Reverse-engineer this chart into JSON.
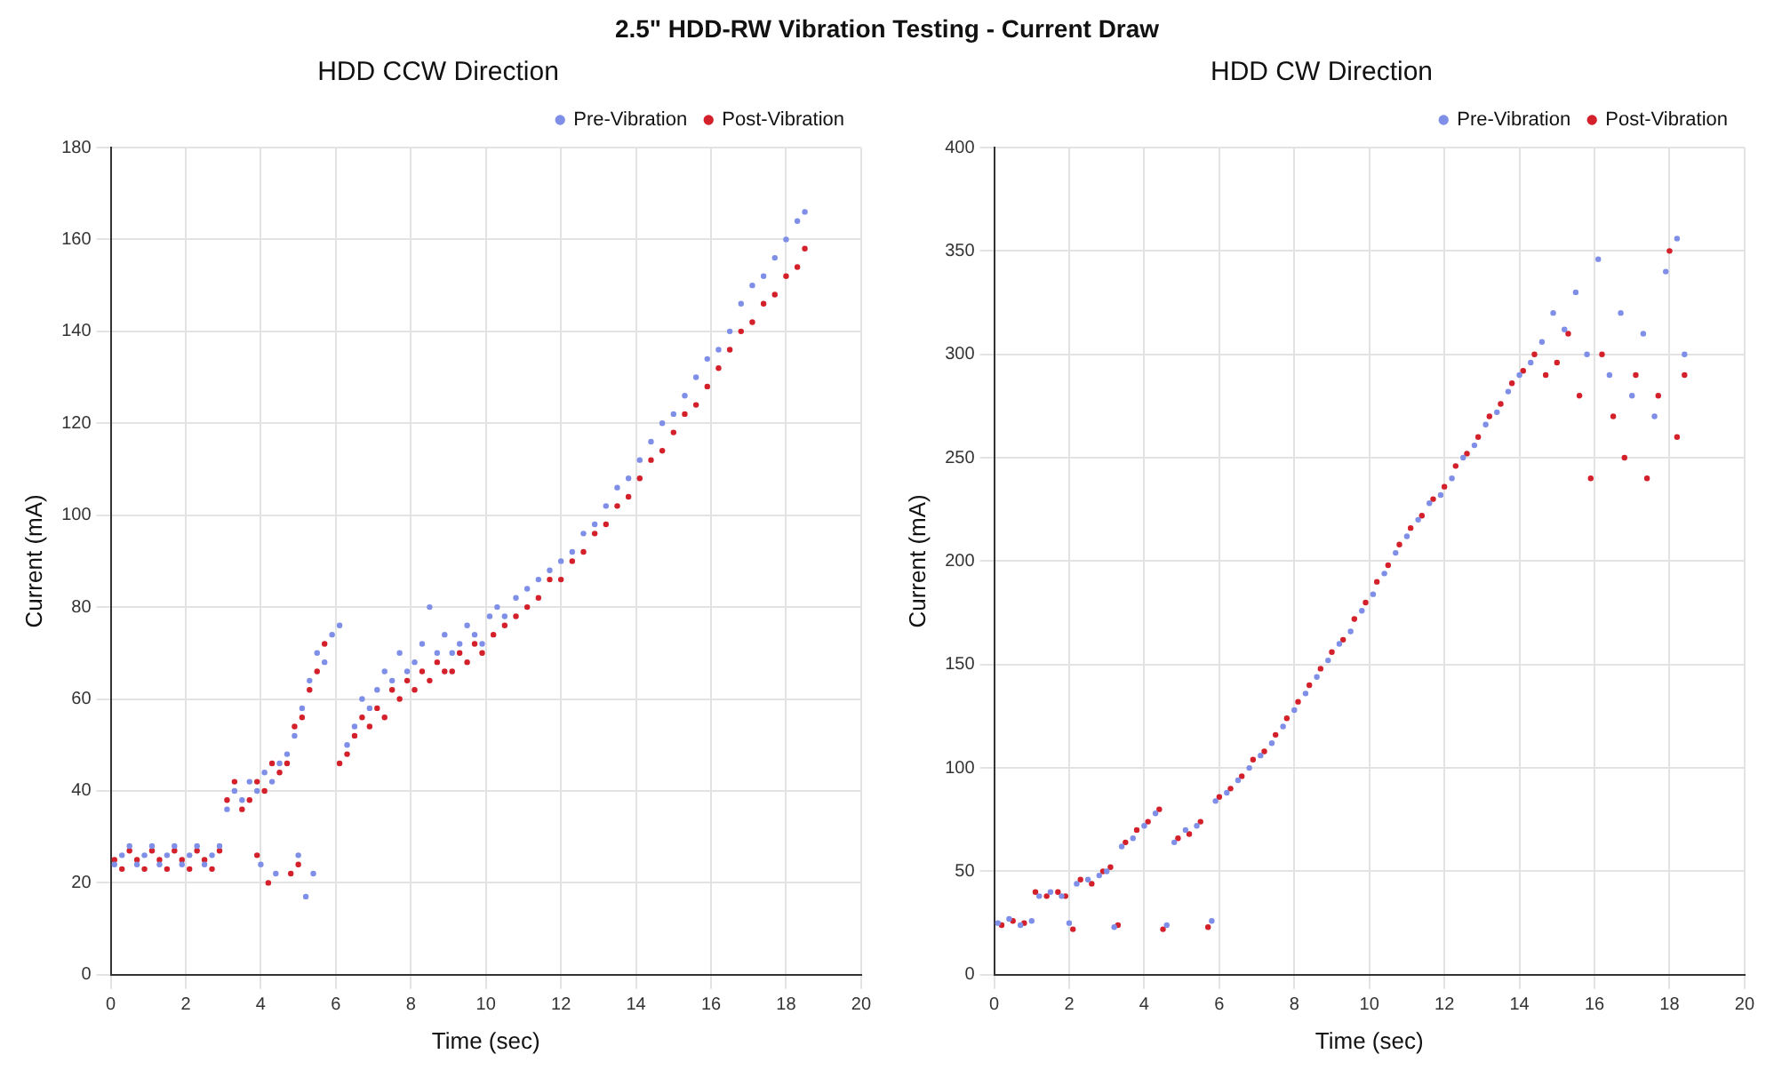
{
  "chart_data": [
    {
      "type": "scatter",
      "annotations": [
        "2.5\" HDD-RW Vibration Testing - Current Draw"
      ],
      "title": "HDD CCW Direction",
      "xlabel": "Time (sec)",
      "ylabel": "Current (mA)",
      "xlim": [
        0,
        20
      ],
      "ylim": [
        0,
        180
      ],
      "xticks": [
        0,
        2,
        4,
        6,
        8,
        10,
        12,
        14,
        16,
        18,
        20
      ],
      "yticks": [
        0,
        20,
        40,
        60,
        80,
        100,
        120,
        140,
        160,
        180
      ],
      "grid": true,
      "legend": "top right",
      "marker": "circle",
      "series": [
        {
          "name": "Pre-Vibration",
          "color": "#7f8fe8",
          "x": [
            0.1,
            0.3,
            0.5,
            0.7,
            0.9,
            1.1,
            1.3,
            1.5,
            1.7,
            1.9,
            2.1,
            2.3,
            2.5,
            2.7,
            2.9,
            3.1,
            3.3,
            3.5,
            3.7,
            3.9,
            4.1,
            4.3,
            4.5,
            4.7,
            4.9,
            5.1,
            5.3,
            5.5,
            5.7,
            5.9,
            6.1,
            4.0,
            4.4,
            5.0,
            5.2,
            5.4,
            6.3,
            6.5,
            6.7,
            6.9,
            7.1,
            7.3,
            7.5,
            7.7,
            7.9,
            8.1,
            8.3,
            8.5,
            8.7,
            8.9,
            9.1,
            9.3,
            9.5,
            9.7,
            9.9,
            10.1,
            10.3,
            10.5,
            10.8,
            11.1,
            11.4,
            11.7,
            12.0,
            12.3,
            12.6,
            12.9,
            13.2,
            13.5,
            13.8,
            14.1,
            14.4,
            14.7,
            15.0,
            15.3,
            15.6,
            15.9,
            16.2,
            16.5,
            16.8,
            17.1,
            17.4,
            17.7,
            18.0,
            18.3,
            18.5
          ],
          "values": [
            24,
            26,
            28,
            24,
            26,
            28,
            24,
            26,
            28,
            24,
            26,
            28,
            24,
            26,
            28,
            36,
            40,
            38,
            42,
            40,
            44,
            42,
            46,
            48,
            52,
            58,
            64,
            70,
            68,
            74,
            76,
            24,
            22,
            26,
            17,
            22,
            50,
            54,
            60,
            58,
            62,
            66,
            64,
            70,
            66,
            68,
            72,
            80,
            70,
            74,
            70,
            72,
            76,
            74,
            72,
            78,
            80,
            78,
            82,
            84,
            86,
            88,
            90,
            92,
            96,
            98,
            102,
            106,
            108,
            112,
            116,
            120,
            122,
            126,
            130,
            134,
            136,
            140,
            146,
            150,
            152,
            156,
            160,
            164,
            166
          ]
        },
        {
          "name": "Post-Vibration",
          "color": "#d4202a",
          "x": [
            0.1,
            0.3,
            0.5,
            0.7,
            0.9,
            1.1,
            1.3,
            1.5,
            1.7,
            1.9,
            2.1,
            2.3,
            2.5,
            2.7,
            2.9,
            3.1,
            3.3,
            3.5,
            3.7,
            3.9,
            4.1,
            4.3,
            4.5,
            4.7,
            4.9,
            5.1,
            5.3,
            5.5,
            5.7,
            3.9,
            4.2,
            4.8,
            5.0,
            6.1,
            6.3,
            6.5,
            6.7,
            6.9,
            7.1,
            7.3,
            7.5,
            7.7,
            7.9,
            8.1,
            8.3,
            8.5,
            8.7,
            8.9,
            9.1,
            9.3,
            9.5,
            9.7,
            9.9,
            10.2,
            10.5,
            10.8,
            11.1,
            11.4,
            11.7,
            12.0,
            12.3,
            12.6,
            12.9,
            13.2,
            13.5,
            13.8,
            14.1,
            14.4,
            14.7,
            15.0,
            15.3,
            15.6,
            15.9,
            16.2,
            16.5,
            16.8,
            17.1,
            17.4,
            17.7,
            18.0,
            18.3,
            18.5
          ],
          "values": [
            25,
            23,
            27,
            25,
            23,
            27,
            25,
            23,
            27,
            25,
            23,
            27,
            25,
            23,
            27,
            38,
            42,
            36,
            38,
            42,
            40,
            46,
            44,
            46,
            54,
            56,
            62,
            66,
            72,
            26,
            20,
            22,
            24,
            46,
            48,
            52,
            56,
            54,
            58,
            56,
            62,
            60,
            64,
            62,
            66,
            64,
            68,
            66,
            66,
            70,
            68,
            72,
            70,
            74,
            76,
            78,
            80,
            82,
            86,
            86,
            90,
            92,
            96,
            98,
            102,
            104,
            108,
            112,
            114,
            118,
            122,
            124,
            128,
            132,
            136,
            140,
            142,
            146,
            148,
            152,
            154,
            158
          ]
        }
      ]
    },
    {
      "type": "scatter",
      "title": "HDD CW Direction",
      "xlabel": "Time (sec)",
      "ylabel": "Current (mA)",
      "xlim": [
        0,
        20
      ],
      "ylim": [
        0,
        400
      ],
      "xticks": [
        0,
        2,
        4,
        6,
        8,
        10,
        12,
        14,
        16,
        18,
        20
      ],
      "yticks": [
        0,
        50,
        100,
        150,
        200,
        250,
        300,
        350,
        400
      ],
      "grid": true,
      "legend": "top right",
      "marker": "circle",
      "series": [
        {
          "name": "Pre-Vibration",
          "color": "#7f8fe8",
          "x": [
            0.1,
            0.4,
            0.7,
            1.0,
            1.2,
            1.5,
            1.8,
            2.0,
            2.2,
            2.5,
            2.8,
            3.0,
            3.2,
            3.4,
            3.7,
            4.0,
            4.3,
            4.6,
            4.8,
            5.1,
            5.4,
            5.8,
            5.9,
            6.2,
            6.5,
            6.8,
            7.1,
            7.4,
            7.7,
            8.0,
            8.3,
            8.6,
            8.9,
            9.2,
            9.5,
            9.8,
            10.1,
            10.4,
            10.7,
            11.0,
            11.3,
            11.6,
            11.9,
            12.2,
            12.5,
            12.8,
            13.1,
            13.4,
            13.7,
            14.0,
            14.3,
            14.6,
            14.9,
            15.2,
            15.5,
            15.8,
            16.1,
            16.4,
            16.7,
            17.0,
            17.3,
            17.6,
            17.9,
            18.2,
            18.4
          ],
          "values": [
            25,
            27,
            24,
            26,
            38,
            40,
            38,
            25,
            44,
            46,
            48,
            50,
            23,
            62,
            66,
            72,
            78,
            24,
            64,
            70,
            72,
            26,
            84,
            88,
            94,
            100,
            106,
            112,
            120,
            128,
            136,
            144,
            152,
            160,
            166,
            176,
            184,
            194,
            204,
            212,
            220,
            228,
            232,
            240,
            250,
            256,
            266,
            272,
            282,
            290,
            296,
            306,
            320,
            312,
            330,
            300,
            346,
            290,
            320,
            280,
            310,
            270,
            340,
            356,
            300
          ]
        },
        {
          "name": "Post-Vibration",
          "color": "#d4202a",
          "x": [
            0.2,
            0.5,
            0.8,
            1.1,
            1.4,
            1.7,
            1.9,
            2.1,
            2.3,
            2.6,
            2.9,
            3.1,
            3.3,
            3.5,
            3.8,
            4.1,
            4.4,
            4.5,
            4.9,
            5.2,
            5.5,
            5.7,
            6.0,
            6.3,
            6.6,
            6.9,
            7.2,
            7.5,
            7.8,
            8.1,
            8.4,
            8.7,
            9.0,
            9.3,
            9.6,
            9.9,
            10.2,
            10.5,
            10.8,
            11.1,
            11.4,
            11.7,
            12.0,
            12.3,
            12.6,
            12.9,
            13.2,
            13.5,
            13.8,
            14.1,
            14.4,
            14.7,
            15.0,
            15.3,
            15.6,
            15.9,
            16.2,
            16.5,
            16.8,
            17.1,
            17.4,
            17.7,
            18.0,
            18.2,
            18.4
          ],
          "values": [
            24,
            26,
            25,
            40,
            38,
            40,
            38,
            22,
            46,
            44,
            50,
            52,
            24,
            64,
            70,
            74,
            80,
            22,
            66,
            68,
            74,
            23,
            86,
            90,
            96,
            104,
            108,
            116,
            124,
            132,
            140,
            148,
            156,
            162,
            172,
            180,
            190,
            198,
            208,
            216,
            222,
            230,
            236,
            246,
            252,
            260,
            270,
            276,
            286,
            292,
            300,
            290,
            296,
            310,
            280,
            240,
            300,
            270,
            250,
            290,
            240,
            280,
            350,
            260,
            290
          ]
        }
      ]
    }
  ]
}
